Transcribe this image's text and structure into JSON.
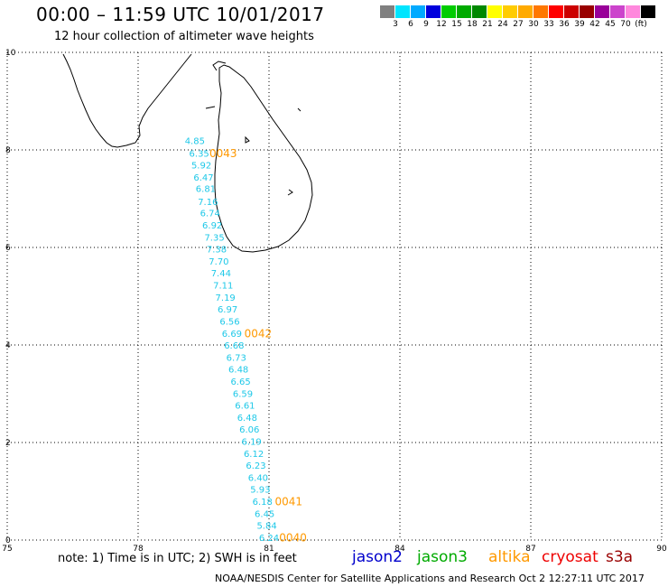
{
  "header": {
    "title": "00:00 – 11:59 UTC 10/01/2017",
    "subtitle": "12 hour collection of altimeter wave heights"
  },
  "colorbar": {
    "colors": [
      "#808080",
      "#00e5ff",
      "#00aaff",
      "#0000dd",
      "#00cc00",
      "#00aa00",
      "#008800",
      "#ffff00",
      "#ffcc00",
      "#ffaa00",
      "#ff7700",
      "#ff0000",
      "#cc0000",
      "#990000",
      "#990099",
      "#cc44cc",
      "#ff88dd",
      "#000000"
    ],
    "labels": [
      "3",
      "6",
      "9",
      "12",
      "15",
      "18",
      "21",
      "24",
      "27",
      "30",
      "33",
      "36",
      "39",
      "42",
      "45",
      "70",
      "(ft)"
    ]
  },
  "map": {
    "lon_labels": [
      "75",
      "78",
      "81",
      "84",
      "87",
      "90"
    ],
    "lat_labels": [
      "0",
      "2",
      "4",
      "6",
      "8",
      "10"
    ],
    "land_color": "#000000",
    "grid_style": "dotted"
  },
  "track": {
    "color": "#1ec8e8",
    "points": [
      {
        "lon": 79.3,
        "lat": 8.18,
        "swh": "4.85"
      },
      {
        "lon": 79.4,
        "lat": 7.92,
        "swh": "6.35"
      },
      {
        "lon": 79.45,
        "lat": 7.68,
        "swh": "5.92"
      },
      {
        "lon": 79.5,
        "lat": 7.43,
        "swh": "6.47"
      },
      {
        "lon": 79.55,
        "lat": 7.19,
        "swh": "6.81"
      },
      {
        "lon": 79.6,
        "lat": 6.93,
        "swh": "7.16"
      },
      {
        "lon": 79.65,
        "lat": 6.69,
        "swh": "6.74"
      },
      {
        "lon": 79.7,
        "lat": 6.44,
        "swh": "6.92"
      },
      {
        "lon": 79.75,
        "lat": 6.19,
        "swh": "7.35"
      },
      {
        "lon": 79.8,
        "lat": 5.95,
        "swh": "7.38"
      },
      {
        "lon": 79.85,
        "lat": 5.7,
        "swh": "7.70"
      },
      {
        "lon": 79.9,
        "lat": 5.46,
        "swh": "7.44"
      },
      {
        "lon": 79.95,
        "lat": 5.21,
        "swh": "7.11"
      },
      {
        "lon": 80.0,
        "lat": 4.96,
        "swh": "7.19"
      },
      {
        "lon": 80.05,
        "lat": 4.72,
        "swh": "6.97"
      },
      {
        "lon": 80.1,
        "lat": 4.47,
        "swh": "6.56"
      },
      {
        "lon": 80.15,
        "lat": 4.22,
        "swh": "6.69"
      },
      {
        "lon": 80.2,
        "lat": 3.98,
        "swh": "6.68"
      },
      {
        "lon": 80.25,
        "lat": 3.73,
        "swh": "6.73"
      },
      {
        "lon": 80.3,
        "lat": 3.49,
        "swh": "6.48"
      },
      {
        "lon": 80.35,
        "lat": 3.24,
        "swh": "6.65"
      },
      {
        "lon": 80.4,
        "lat": 2.99,
        "swh": "6.59"
      },
      {
        "lon": 80.45,
        "lat": 2.75,
        "swh": "6.61"
      },
      {
        "lon": 80.5,
        "lat": 2.5,
        "swh": "6.48"
      },
      {
        "lon": 80.55,
        "lat": 2.26,
        "swh": "6.06"
      },
      {
        "lon": 80.6,
        "lat": 2.01,
        "swh": "6.19"
      },
      {
        "lon": 80.65,
        "lat": 1.76,
        "swh": "6.12"
      },
      {
        "lon": 80.7,
        "lat": 1.52,
        "swh": "6.23"
      },
      {
        "lon": 80.75,
        "lat": 1.27,
        "swh": "6.40"
      },
      {
        "lon": 80.8,
        "lat": 1.03,
        "swh": "5.93"
      },
      {
        "lon": 80.85,
        "lat": 0.78,
        "swh": "6.18"
      },
      {
        "lon": 80.9,
        "lat": 0.53,
        "swh": "6.45"
      },
      {
        "lon": 80.95,
        "lat": 0.29,
        "swh": "5.84"
      },
      {
        "lon": 81.0,
        "lat": 0.04,
        "swh": "6.24"
      }
    ]
  },
  "time_labels": {
    "color": "#ff9900",
    "items": [
      {
        "lon": 79.95,
        "lat": 7.92,
        "text": "0043"
      },
      {
        "lon": 80.75,
        "lat": 4.22,
        "text": "0042"
      },
      {
        "lon": 81.45,
        "lat": 0.78,
        "text": "0041"
      },
      {
        "lon": 81.55,
        "lat": 0.04,
        "text": "0040"
      }
    ]
  },
  "footer": {
    "note": "note: 1) Time is in UTC; 2) SWH is in feet",
    "satellites": [
      {
        "name": "jason2",
        "color": "#0000cc"
      },
      {
        "name": "jason3",
        "color": "#00aa00"
      },
      {
        "name": "altika",
        "color": "#ff9900"
      },
      {
        "name": "cryosat",
        "color": "#ee0000"
      },
      {
        "name": "s3a",
        "color": "#990000"
      }
    ],
    "credit": "NOAA/NESDIS Center for Satellite Applications and Research     Oct  2 12:27:11 UTC 2017"
  }
}
